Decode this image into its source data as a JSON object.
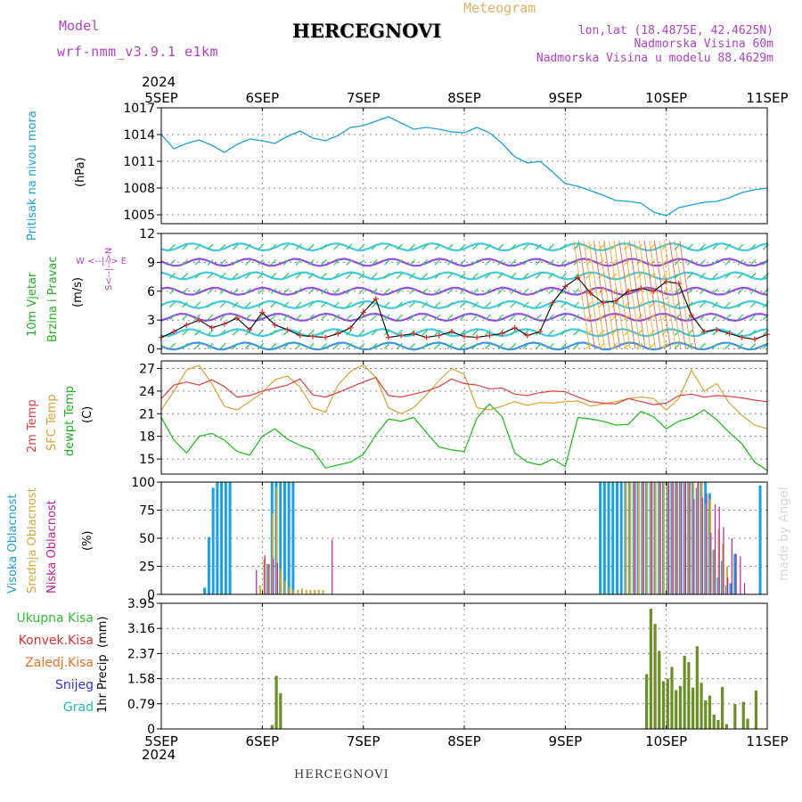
{
  "header": {
    "model_label": "Model",
    "model_name": "wrf-nmm_v3.9.1 e1km",
    "title": "HERCEGNOVI",
    "meteogram": "Meteogram",
    "lonlat": "lon,lat (18.4875E, 42.4625N)",
    "nadm": "Nadmorska Visina 60m",
    "nadm_model": "Nadmorska Visina u modelu 88.4629m",
    "footer_title": "HERCEGNOVI",
    "made_by": "made by Angel"
  },
  "colors": {
    "pressure": "#1ba0e0",
    "temp2m": "#e04040",
    "sfc": "#e0a030",
    "dewpt": "#20c020",
    "visoka": "#1ba0e0",
    "srednja": "#d8a838",
    "niska": "#c0209a",
    "ukupna": "#30c030",
    "konvek": "#e03030",
    "zaledj": "#e87020",
    "snijeg": "#3030e0",
    "grad": "#20c0b0",
    "purple": "#b040c8"
  },
  "axis": {
    "year": "2024",
    "days": [
      "5SEP",
      "6SEP",
      "7SEP",
      "8SEP",
      "9SEP",
      "10SEP",
      "11SEP"
    ]
  },
  "chart_data": [
    {
      "type": "line",
      "panel": "pressure",
      "ylabel": "Pritisak na nivou mora",
      "unit": "(hPa)",
      "ylim": [
        1004,
        1017
      ],
      "yticks": [
        1005,
        1008,
        1011,
        1014,
        1017
      ],
      "x_hours": [
        0,
        3,
        6,
        9,
        12,
        15,
        18,
        21,
        24,
        27,
        30,
        33,
        36,
        39,
        42,
        45,
        48,
        51,
        54,
        57,
        60,
        63,
        66,
        69,
        72,
        75,
        78,
        81,
        84,
        87,
        90,
        93,
        96,
        99,
        102,
        105,
        108,
        111,
        114,
        117,
        120,
        123,
        126,
        129,
        132,
        135,
        138,
        141,
        144
      ],
      "series": [
        {
          "name": "Pritisak na nivou mora",
          "values": [
            1014.0,
            1012.4,
            1013.0,
            1013.4,
            1012.8,
            1012.0,
            1012.9,
            1013.5,
            1013.3,
            1013.0,
            1013.8,
            1014.4,
            1013.6,
            1013.3,
            1013.9,
            1014.8,
            1015.0,
            1015.5,
            1016.0,
            1015.3,
            1014.6,
            1014.8,
            1014.6,
            1014.3,
            1014.2,
            1014.8,
            1014.2,
            1013.0,
            1011.5,
            1010.8,
            1011.0,
            1009.8,
            1008.5,
            1008.2,
            1007.7,
            1007.2,
            1006.6,
            1006.5,
            1006.3,
            1005.3,
            1004.9,
            1005.8,
            1006.1,
            1006.4,
            1006.5,
            1006.9,
            1007.5,
            1007.8,
            1008.0
          ]
        }
      ]
    },
    {
      "type": "scatter",
      "panel": "wind",
      "ylabel": "10m Vjetar Brzina i Pravac",
      "unit": "(m/s)",
      "compass": "W <--|--> E",
      "compass_ns": "S<--|-->N",
      "ylim": [
        -0.5,
        12
      ],
      "yticks": [
        0,
        3,
        6,
        9,
        12
      ],
      "x_hours": [
        0,
        3,
        6,
        9,
        12,
        15,
        18,
        21,
        24,
        27,
        30,
        33,
        36,
        39,
        42,
        45,
        48,
        51,
        54,
        57,
        60,
        63,
        66,
        69,
        72,
        75,
        78,
        81,
        84,
        87,
        90,
        93,
        96,
        99,
        102,
        105,
        108,
        111,
        114,
        117,
        120,
        123,
        126,
        129,
        132,
        135,
        138,
        141,
        144
      ],
      "series": [
        {
          "name": "10m Vjetar Brzina",
          "values": [
            1.2,
            1.8,
            2.5,
            3.0,
            2.2,
            2.6,
            3.2,
            2.0,
            3.8,
            2.5,
            2.0,
            1.4,
            1.3,
            1.2,
            1.6,
            2.2,
            3.8,
            5.2,
            1.2,
            1.4,
            1.6,
            1.2,
            1.4,
            1.8,
            1.3,
            1.2,
            1.4,
            1.6,
            2.2,
            1.4,
            1.8,
            4.8,
            6.5,
            7.4,
            5.8,
            4.8,
            5.0,
            6.0,
            6.3,
            6.0,
            7.0,
            6.8,
            3.5,
            1.8,
            2.0,
            1.6,
            1.2,
            1.0,
            1.5
          ]
        }
      ]
    },
    {
      "type": "line",
      "panel": "temperature",
      "ylabel_series": [
        "2m Temp",
        "SFC Temp",
        "dewpt Temp"
      ],
      "unit": "(C)",
      "ylim": [
        13,
        28
      ],
      "yticks": [
        15,
        18,
        21,
        24,
        27
      ],
      "x_hours": [
        0,
        3,
        6,
        9,
        12,
        15,
        18,
        21,
        24,
        27,
        30,
        33,
        36,
        39,
        42,
        45,
        48,
        51,
        54,
        57,
        60,
        63,
        66,
        69,
        72,
        75,
        78,
        81,
        84,
        87,
        90,
        93,
        96,
        99,
        102,
        105,
        108,
        111,
        114,
        117,
        120,
        123,
        126,
        129,
        132,
        135,
        138,
        141,
        144
      ],
      "series": [
        {
          "name": "2m Temp",
          "values": [
            23.0,
            24.8,
            25.2,
            24.8,
            25.5,
            24.6,
            23.2,
            23.4,
            24.0,
            24.4,
            24.8,
            25.6,
            23.5,
            23.2,
            23.8,
            24.5,
            25.2,
            25.8,
            23.4,
            23.2,
            23.6,
            24.0,
            24.6,
            25.6,
            25.0,
            24.8,
            24.3,
            24.4,
            23.6,
            23.4,
            23.8,
            24.0,
            23.9,
            23.2,
            22.6,
            22.4,
            22.3,
            23.0,
            22.6,
            22.2,
            22.4,
            23.4,
            23.6,
            23.2,
            23.4,
            23.3,
            23.1,
            22.8,
            22.6
          ]
        },
        {
          "name": "SFC Temp",
          "values": [
            21.5,
            24.0,
            26.8,
            27.4,
            25.0,
            22.0,
            21.5,
            22.6,
            23.8,
            25.5,
            26.0,
            24.5,
            21.8,
            21.2,
            24.8,
            26.6,
            27.5,
            25.8,
            21.8,
            21.0,
            21.8,
            23.5,
            25.4,
            27.0,
            26.2,
            21.8,
            21.5,
            22.0,
            22.6,
            22.1,
            22.5,
            22.4,
            22.6,
            22.7,
            22.0,
            22.3,
            22.6,
            23.0,
            23.2,
            23.0,
            21.5,
            23.0,
            26.8,
            24.0,
            25.0,
            22.4,
            20.8,
            19.5,
            19.0
          ]
        },
        {
          "name": "dewpt Temp",
          "values": [
            20.5,
            17.5,
            15.8,
            18.0,
            18.4,
            17.5,
            16.0,
            15.5,
            18.0,
            19.0,
            17.6,
            16.8,
            16.2,
            13.8,
            14.2,
            14.6,
            15.6,
            18.2,
            20.3,
            20.0,
            20.5,
            18.5,
            16.6,
            16.2,
            16.0,
            20.4,
            22.3,
            20.6,
            15.8,
            14.6,
            14.2,
            15.0,
            14.0,
            20.5,
            20.3,
            20.0,
            19.5,
            19.6,
            21.3,
            20.6,
            19.0,
            20.0,
            20.5,
            21.5,
            20.2,
            18.5,
            17.0,
            14.6,
            13.5
          ]
        }
      ]
    },
    {
      "type": "bar",
      "panel": "clouds",
      "ylabel_series": [
        "Visoka Oblacnost",
        "Srednja Oblacnost",
        "Niska Oblacnost"
      ],
      "unit": "(%)",
      "ylim": [
        0,
        100
      ],
      "yticks": [
        0,
        25,
        50,
        75,
        100
      ],
      "series": [
        {
          "name": "Visoka Oblacnost",
          "x_hours": [
            10,
            11,
            12,
            13,
            14,
            15,
            16,
            25,
            26,
            27,
            28,
            29,
            30,
            31,
            104,
            105,
            106,
            107,
            108,
            109,
            110,
            111,
            112,
            113,
            114,
            115,
            116,
            117,
            118,
            119,
            120,
            121,
            122,
            123,
            124,
            125,
            126,
            127,
            128,
            129,
            130,
            131,
            132,
            133,
            134,
            135,
            136,
            142
          ],
          "values": [
            6,
            51,
            95,
            100,
            100,
            100,
            100,
            27,
            100,
            100,
            100,
            100,
            100,
            100,
            100,
            100,
            100,
            100,
            100,
            100,
            100,
            100,
            100,
            100,
            100,
            100,
            100,
            100,
            100,
            100,
            100,
            100,
            100,
            100,
            100,
            100,
            100,
            95,
            100,
            100,
            90,
            40,
            15,
            30,
            8,
            10,
            36,
            97
          ]
        },
        {
          "name": "Srednja Oblacnost",
          "x_hours": [
            23,
            24,
            25,
            26,
            27,
            28,
            29,
            30,
            31,
            32,
            33,
            34,
            35,
            36,
            37,
            38,
            110,
            111,
            112,
            113,
            114,
            115,
            116,
            117,
            118,
            119,
            120,
            121,
            122,
            123,
            124,
            125,
            126,
            127,
            128,
            129,
            130,
            131,
            132,
            133,
            134
          ],
          "values": [
            8,
            32,
            27,
            72,
            95,
            22,
            12,
            6,
            4,
            4,
            5,
            4,
            4,
            4,
            4,
            4,
            100,
            100,
            100,
            100,
            100,
            100,
            100,
            100,
            100,
            100,
            100,
            100,
            100,
            100,
            100,
            100,
            100,
            100,
            100,
            80,
            85,
            40,
            58,
            45,
            25
          ]
        },
        {
          "name": "Niska Oblacnost",
          "x_hours": [
            22,
            24,
            25,
            26,
            27,
            40,
            112,
            114,
            116,
            118,
            120,
            121,
            122,
            123,
            124,
            125,
            126,
            127,
            128,
            129,
            130,
            131,
            132,
            133,
            134,
            135,
            136,
            137,
            138
          ],
          "values": [
            22,
            35,
            27,
            32,
            28,
            49,
            100,
            100,
            100,
            100,
            100,
            100,
            100,
            100,
            100,
            100,
            85,
            100,
            86,
            90,
            55,
            80,
            78,
            60,
            15,
            50,
            36,
            34,
            10
          ]
        }
      ]
    },
    {
      "type": "bar",
      "panel": "precip",
      "ylabel": "1hr Precip",
      "unit": "(mm)",
      "legend": [
        "Ukupna Kisa",
        "Konvek.Kisa",
        "Zaledj.Kisa",
        "Snijeg",
        "Grad"
      ],
      "ylim": [
        0,
        3.95
      ],
      "yticks": [
        "0",
        "0.79",
        "1.58",
        "2.37",
        "3.16",
        "3.95"
      ],
      "x_hours": [
        26,
        27,
        28,
        115,
        116,
        117,
        118,
        119,
        120,
        121,
        122,
        123,
        124,
        125,
        126,
        127,
        128,
        129,
        130,
        131,
        132,
        133,
        134,
        136,
        138,
        139,
        141
      ],
      "values": [
        0.12,
        1.67,
        1.12,
        1.72,
        3.78,
        3.3,
        2.45,
        1.5,
        1.58,
        1.95,
        1.22,
        1.35,
        2.3,
        2.1,
        1.3,
        2.6,
        1.45,
        0.9,
        1.05,
        0.45,
        0.28,
        1.32,
        0.15,
        0.78,
        0.85,
        0.32,
        1.21
      ]
    }
  ]
}
